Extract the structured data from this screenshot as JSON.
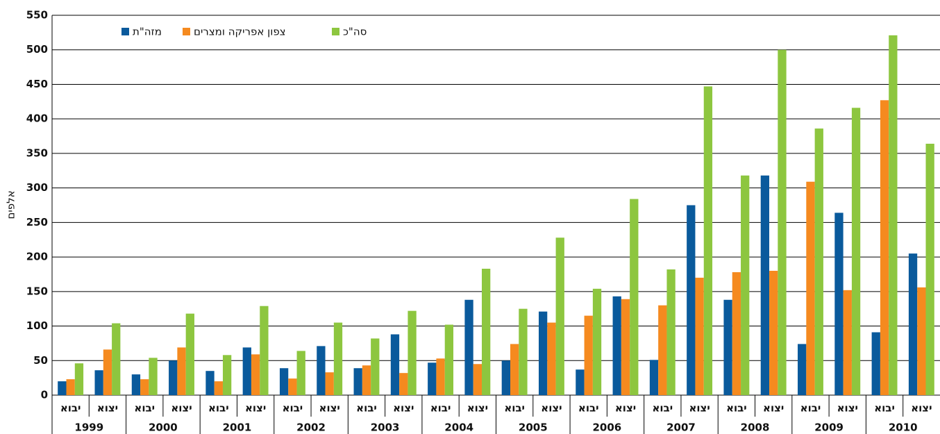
{
  "chart_data": {
    "type": "bar",
    "y_label": "אלפים",
    "categories": [
      "יבוא",
      "יצוא",
      "יבוא",
      "יצוא",
      "יבוא",
      "יצוא",
      "יבוא",
      "יצוא",
      "יבוא",
      "יצוא",
      "יבוא",
      "יצוא",
      "יבוא",
      "יצוא",
      "יבוא",
      "יצוא",
      "יבוא",
      "יצוא",
      "יבוא",
      "יצוא",
      "יבוא",
      "יצוא",
      "יבוא",
      "יצוא"
    ],
    "groups": [
      "1999",
      "2000",
      "2001",
      "2002",
      "2003",
      "2004",
      "2005",
      "2006",
      "2007",
      "2008",
      "2009",
      "2010"
    ],
    "series": [
      {
        "name": "מזה\"ת",
        "color": "#0a5a9c",
        "values": [
          20,
          36,
          30,
          50,
          35,
          69,
          39,
          71,
          39,
          88,
          47,
          138,
          50,
          121,
          37,
          143,
          51,
          275,
          138,
          318,
          74,
          264,
          91,
          205
        ]
      },
      {
        "name": "צפון אפריקה ומצרים",
        "color": "#f58a1f",
        "values": [
          23,
          66,
          23,
          69,
          20,
          59,
          24,
          33,
          43,
          32,
          53,
          45,
          74,
          105,
          115,
          139,
          130,
          170,
          178,
          180,
          309,
          152,
          427,
          156
        ]
      },
      {
        "name": "סה\"כ",
        "color": "#8dc63f",
        "values": [
          46,
          104,
          54,
          118,
          58,
          129,
          64,
          105,
          82,
          122,
          102,
          183,
          125,
          228,
          154,
          284,
          182,
          447,
          318,
          500,
          386,
          416,
          521,
          364
        ]
      }
    ],
    "ylim": [
      0,
      550
    ],
    "yticks": [
      0,
      50,
      100,
      150,
      200,
      250,
      300,
      350,
      400,
      450,
      500,
      550
    ],
    "grid": true
  }
}
